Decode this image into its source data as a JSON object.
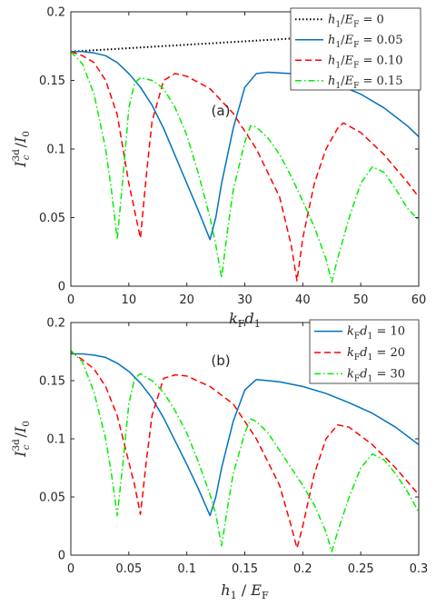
{
  "chart_data": [
    {
      "type": "line",
      "panel_label": "(a)",
      "xlabel": "k_F d_1",
      "ylabel": "I_c^3d / I_0",
      "xlim": [
        0,
        60
      ],
      "ylim": [
        0,
        0.2
      ],
      "xticks": [
        "0",
        "10",
        "20",
        "30",
        "40",
        "50",
        "60"
      ],
      "yticks": [
        "0",
        "0.05",
        "0.1",
        "0.15",
        "0.2"
      ],
      "legend_position": "top-right",
      "series": [
        {
          "name": "h1/EF = 0",
          "color": "#000000",
          "dash": "dotted",
          "x": [
            0,
            10,
            20,
            30,
            40,
            50,
            60
          ],
          "y": [
            0.171,
            0.1735,
            0.176,
            0.1785,
            0.181,
            0.1835,
            0.186
          ]
        },
        {
          "name": "h1/EF = 0.05",
          "color": "#0072BD",
          "dash": "solid",
          "x": [
            0,
            2,
            4,
            6,
            8,
            10,
            12,
            14,
            16,
            18,
            20,
            22,
            24,
            25,
            26,
            28,
            30,
            32,
            34,
            38,
            42,
            46,
            50,
            54,
            58,
            60
          ],
          "y": [
            0.171,
            0.171,
            0.17,
            0.168,
            0.163,
            0.155,
            0.145,
            0.132,
            0.115,
            0.095,
            0.075,
            0.055,
            0.034,
            0.05,
            0.075,
            0.115,
            0.145,
            0.155,
            0.156,
            0.155,
            0.152,
            0.147,
            0.14,
            0.13,
            0.117,
            0.109
          ]
        },
        {
          "name": "h1/EF = 0.10",
          "color": "#FF0000",
          "dash": "dashed",
          "x": [
            0,
            2,
            4,
            6,
            8,
            10,
            11,
            12,
            13,
            14,
            16,
            18,
            20,
            24,
            28,
            32,
            36,
            38,
            39,
            40,
            42,
            44,
            46,
            47,
            50,
            54,
            58,
            60
          ],
          "y": [
            0.171,
            0.168,
            0.163,
            0.15,
            0.125,
            0.075,
            0.055,
            0.035,
            0.08,
            0.12,
            0.15,
            0.155,
            0.153,
            0.144,
            0.126,
            0.1,
            0.065,
            0.03,
            0.004,
            0.035,
            0.075,
            0.1,
            0.115,
            0.119,
            0.112,
            0.096,
            0.076,
            0.065
          ]
        },
        {
          "name": "h1/EF = 0.15",
          "color": "#00EE00",
          "dash": "dashdot",
          "x": [
            0,
            2,
            4,
            6,
            7,
            8,
            9,
            10,
            11,
            12,
            14,
            16,
            18,
            20,
            22,
            24,
            25,
            26,
            27,
            28,
            30,
            31,
            32,
            34,
            36,
            38,
            40,
            42,
            44,
            45,
            46,
            48,
            50,
            52,
            54,
            56,
            58,
            60
          ],
          "y": [
            0.171,
            0.162,
            0.14,
            0.1,
            0.07,
            0.034,
            0.08,
            0.13,
            0.148,
            0.152,
            0.15,
            0.144,
            0.13,
            0.11,
            0.082,
            0.05,
            0.03,
            0.006,
            0.04,
            0.07,
            0.105,
            0.117,
            0.116,
            0.108,
            0.096,
            0.08,
            0.062,
            0.043,
            0.02,
            0.003,
            0.02,
            0.05,
            0.075,
            0.087,
            0.083,
            0.071,
            0.057,
            0.048
          ]
        }
      ]
    },
    {
      "type": "line",
      "panel_label": "(b)",
      "xlabel": "h_1 / E_F",
      "ylabel": "I_c^3d / I_0",
      "xlim": [
        0,
        0.3
      ],
      "ylim": [
        0,
        0.2
      ],
      "xticks": [
        "0",
        "0.05",
        "0.1",
        "0.15",
        "0.2",
        "0.25",
        "0.3"
      ],
      "yticks": [
        "0",
        "0.05",
        "0.1",
        "0.15",
        "0.2"
      ],
      "legend_position": "top-right",
      "series": [
        {
          "name": "kFd1 = 10",
          "color": "#0072BD",
          "dash": "solid",
          "x": [
            0,
            0.01,
            0.02,
            0.03,
            0.04,
            0.05,
            0.06,
            0.07,
            0.08,
            0.09,
            0.1,
            0.11,
            0.12,
            0.125,
            0.13,
            0.14,
            0.15,
            0.16,
            0.18,
            0.2,
            0.22,
            0.24,
            0.26,
            0.28,
            0.3
          ],
          "y": [
            0.173,
            0.173,
            0.172,
            0.17,
            0.165,
            0.158,
            0.148,
            0.135,
            0.118,
            0.098,
            0.078,
            0.057,
            0.034,
            0.05,
            0.075,
            0.115,
            0.142,
            0.151,
            0.149,
            0.145,
            0.139,
            0.131,
            0.122,
            0.11,
            0.095
          ]
        },
        {
          "name": "kFd1 = 20",
          "color": "#FF0000",
          "dash": "dashed",
          "x": [
            0,
            0.01,
            0.02,
            0.03,
            0.04,
            0.05,
            0.055,
            0.06,
            0.065,
            0.07,
            0.08,
            0.09,
            0.1,
            0.12,
            0.14,
            0.16,
            0.18,
            0.19,
            0.195,
            0.2,
            0.21,
            0.22,
            0.23,
            0.24,
            0.26,
            0.28,
            0.3
          ],
          "y": [
            0.175,
            0.168,
            0.16,
            0.145,
            0.12,
            0.08,
            0.06,
            0.035,
            0.08,
            0.12,
            0.152,
            0.155,
            0.154,
            0.145,
            0.13,
            0.1,
            0.06,
            0.025,
            0.006,
            0.025,
            0.07,
            0.1,
            0.112,
            0.11,
            0.095,
            0.075,
            0.052
          ]
        },
        {
          "name": "kFd1 = 30",
          "color": "#00EE00",
          "dash": "dashdot",
          "x": [
            0,
            0.01,
            0.02,
            0.03,
            0.035,
            0.04,
            0.045,
            0.05,
            0.055,
            0.06,
            0.07,
            0.08,
            0.09,
            0.1,
            0.11,
            0.12,
            0.125,
            0.13,
            0.135,
            0.14,
            0.15,
            0.155,
            0.16,
            0.17,
            0.18,
            0.19,
            0.2,
            0.21,
            0.22,
            0.225,
            0.23,
            0.24,
            0.25,
            0.26,
            0.27,
            0.28,
            0.29,
            0.3
          ],
          "y": [
            0.176,
            0.166,
            0.14,
            0.1,
            0.07,
            0.034,
            0.08,
            0.13,
            0.152,
            0.156,
            0.15,
            0.14,
            0.124,
            0.105,
            0.08,
            0.052,
            0.035,
            0.008,
            0.04,
            0.07,
            0.105,
            0.117,
            0.115,
            0.105,
            0.09,
            0.075,
            0.06,
            0.043,
            0.02,
            0.003,
            0.02,
            0.05,
            0.075,
            0.087,
            0.082,
            0.07,
            0.055,
            0.037
          ]
        }
      ]
    }
  ]
}
